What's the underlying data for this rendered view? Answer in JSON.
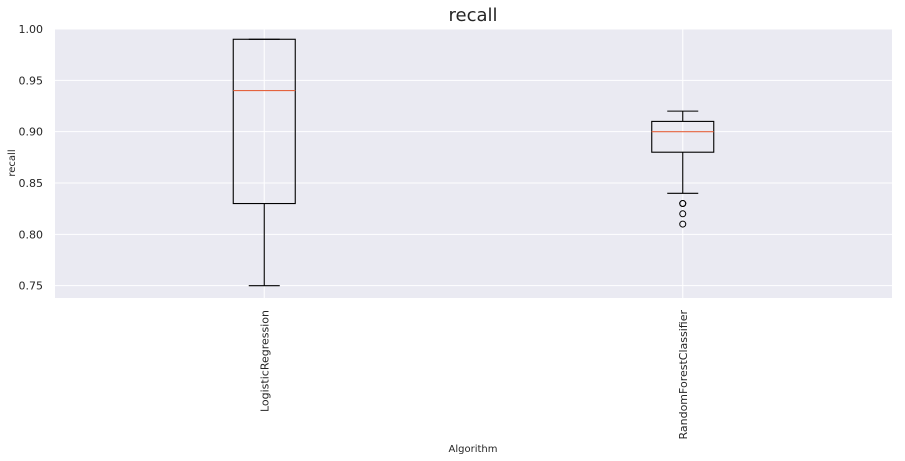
{
  "chart_data": {
    "type": "box",
    "title": "recall",
    "xlabel": "Algorithm",
    "ylabel": "recall",
    "ylim": [
      0.738,
      1.0
    ],
    "yticks": [
      0.75,
      0.8,
      0.85,
      0.9,
      0.95,
      1.0
    ],
    "ytick_labels": [
      "0.75",
      "0.80",
      "0.85",
      "0.90",
      "0.95",
      "1.00"
    ],
    "grid": true,
    "categories": [
      "LogisticRegression",
      "RandomForestClassifier"
    ],
    "boxes": [
      {
        "category": "LogisticRegression",
        "whisker_low": 0.75,
        "q1": 0.83,
        "median": 0.94,
        "q3": 0.99,
        "whisker_high": 0.99,
        "outliers": []
      },
      {
        "category": "RandomForestClassifier",
        "whisker_low": 0.84,
        "q1": 0.88,
        "median": 0.9,
        "q3": 0.91,
        "whisker_high": 0.92,
        "outliers": [
          0.83,
          0.83,
          0.82,
          0.81
        ]
      }
    ],
    "colors": {
      "plot_background": "#eaeaf2",
      "grid": "#ffffff",
      "box": "#000000",
      "median": "#e4633f"
    }
  }
}
